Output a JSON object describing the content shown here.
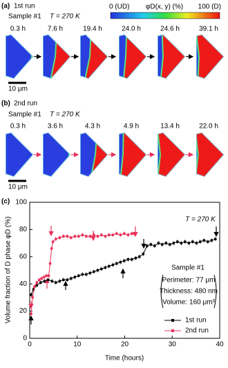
{
  "colorbar": {
    "min_label": "0 (UD)",
    "label": "φD(x, y) (%)",
    "max_label": "100 (D)"
  },
  "panel_a": {
    "label": "(a)",
    "title": "1st run",
    "sample": "Sample #1",
    "temperature": "T = 270 K",
    "times": [
      "0.3 h",
      "7.6 h",
      "19.4 h",
      "24.0 h",
      "24.6 h",
      "39.1 h"
    ],
    "scale_bar": "10 μm"
  },
  "panel_b": {
    "label": "(b)",
    "title": "2nd run",
    "sample": "Sample #1",
    "temperature": "T = 270 K",
    "times": [
      "0.3 h",
      "3.6 h",
      "4.3 h",
      "4.9 h",
      "13.4 h",
      "22.0 h"
    ],
    "scale_bar": "10 μm"
  },
  "chart_data": {
    "type": "scatter",
    "panel_label": "(c)",
    "xlabel": "Time (hours)",
    "ylabel": "Volume fraction of D phase φD (%)",
    "xlim": [
      0,
      40
    ],
    "xticks": [
      0,
      10,
      20,
      30,
      40
    ],
    "ylim": [
      0,
      100
    ],
    "yticks": [
      0,
      20,
      40,
      60,
      80,
      100
    ],
    "annotations": [
      "T = 270 K",
      "Sample #1",
      "Perimeter: 77 μm",
      "Thickness: 480 nm",
      "Volume: 160 μm³"
    ],
    "series": [
      {
        "name": "1st run",
        "color": "#000000",
        "x": [
          0.3,
          0.8,
          1.5,
          2.3,
          3.1,
          3.9,
          4.7,
          5.5,
          6.3,
          7.1,
          7.9,
          8.7,
          9.5,
          10.3,
          11.1,
          11.9,
          12.7,
          13.5,
          14.3,
          15.1,
          15.9,
          16.7,
          17.5,
          18.3,
          19.1,
          19.9,
          20.7,
          21.5,
          22.3,
          23.1,
          23.9,
          24.7,
          25.5,
          26.3,
          27.1,
          27.9,
          28.7,
          29.5,
          30.3,
          31.1,
          31.9,
          32.7,
          33.5,
          34.3,
          35.1,
          35.9,
          36.7,
          37.5,
          38.3,
          39.1
        ],
        "values": [
          32,
          36,
          39,
          41,
          42,
          43,
          42,
          41,
          42,
          43,
          43,
          44,
          45,
          46,
          47,
          47,
          48,
          49,
          50,
          51,
          52,
          53,
          54,
          55,
          56,
          57,
          58,
          58,
          59,
          60,
          62,
          68,
          69,
          68,
          70,
          69,
          70,
          69,
          70,
          71,
          70,
          71,
          70,
          71,
          70,
          71,
          72,
          71,
          72,
          73
        ]
      },
      {
        "name": "2nd run",
        "color": "#e8305a",
        "x": [
          0.3,
          0.6,
          1.0,
          1.5,
          2.0,
          2.5,
          3.0,
          3.5,
          4.0,
          4.3,
          4.6,
          4.9,
          5.5,
          6.3,
          7.1,
          7.9,
          8.7,
          9.5,
          10.3,
          11.1,
          11.9,
          12.7,
          13.5,
          14.3,
          15.1,
          15.9,
          16.7,
          17.5,
          18.3,
          19.1,
          19.9,
          20.7,
          21.5,
          22.0
        ],
        "values": [
          18,
          30,
          38,
          41,
          43,
          44,
          45,
          46,
          46,
          55,
          66,
          71,
          73,
          74,
          75,
          75,
          74,
          75,
          75,
          76,
          75,
          75,
          76,
          75,
          76,
          75,
          76,
          76,
          77,
          76,
          77,
          76,
          77,
          77
        ]
      }
    ]
  }
}
